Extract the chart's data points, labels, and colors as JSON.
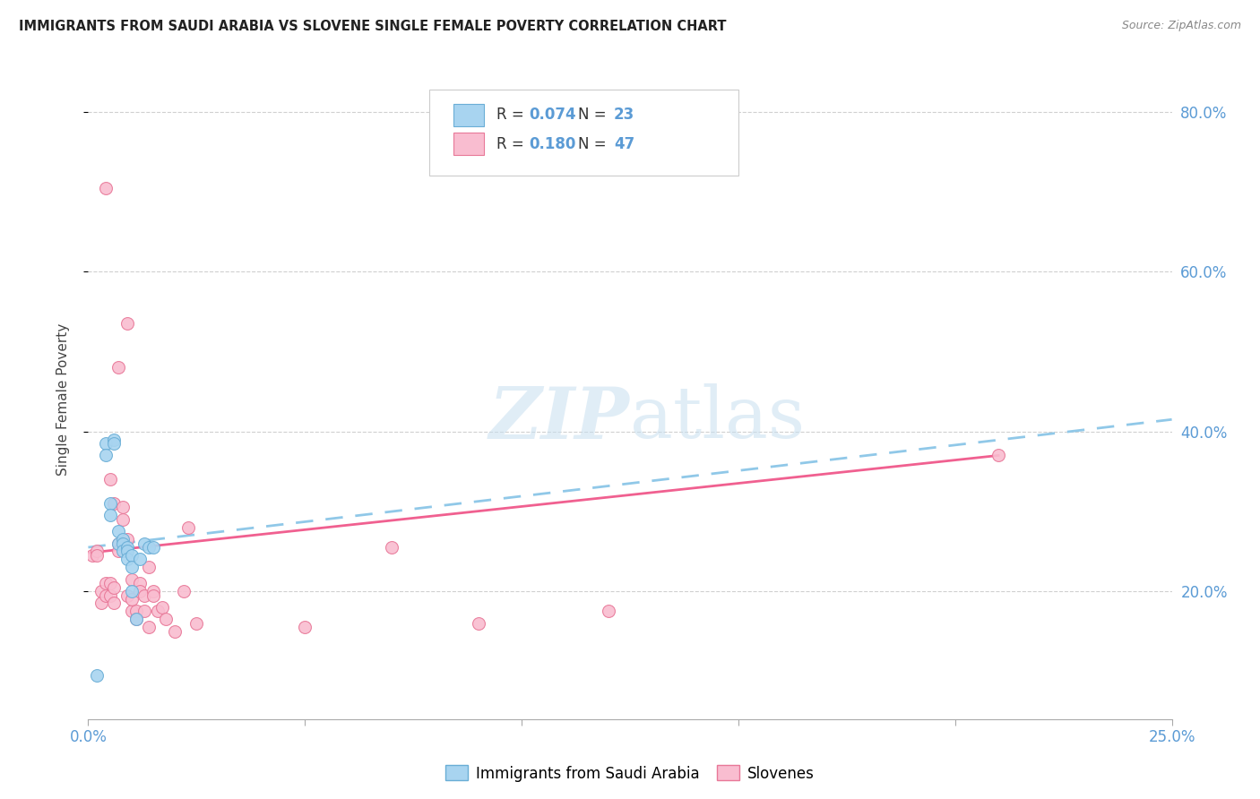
{
  "title": "IMMIGRANTS FROM SAUDI ARABIA VS SLOVENE SINGLE FEMALE POVERTY CORRELATION CHART",
  "source": "Source: ZipAtlas.com",
  "ylabel": "Single Female Poverty",
  "xlim": [
    0.0,
    0.25
  ],
  "ylim": [
    0.04,
    0.84
  ],
  "xticks": [
    0.0,
    0.05,
    0.1,
    0.15,
    0.2,
    0.25
  ],
  "yticks": [
    0.2,
    0.4,
    0.6,
    0.8
  ],
  "background_color": "#FFFFFF",
  "grid_color": "#D0D0D0",
  "blue_scatter_face": "#A8D4F0",
  "blue_scatter_edge": "#6AAED6",
  "pink_scatter_face": "#F9BDD0",
  "pink_scatter_edge": "#E87898",
  "blue_trend_color": "#90C8E8",
  "pink_trend_color": "#F06090",
  "right_axis_color": "#5B9BD5",
  "bottom_label_color": "#5B9BD5",
  "blue_points_x": [
    0.002,
    0.004,
    0.004,
    0.005,
    0.005,
    0.006,
    0.006,
    0.007,
    0.007,
    0.008,
    0.008,
    0.008,
    0.009,
    0.009,
    0.009,
    0.01,
    0.01,
    0.01,
    0.011,
    0.012,
    0.013,
    0.014,
    0.015
  ],
  "blue_points_y": [
    0.095,
    0.385,
    0.37,
    0.31,
    0.295,
    0.39,
    0.385,
    0.275,
    0.26,
    0.265,
    0.26,
    0.25,
    0.255,
    0.25,
    0.24,
    0.245,
    0.23,
    0.2,
    0.165,
    0.24,
    0.26,
    0.255,
    0.255
  ],
  "pink_points_x": [
    0.001,
    0.002,
    0.002,
    0.003,
    0.003,
    0.004,
    0.004,
    0.004,
    0.005,
    0.005,
    0.005,
    0.006,
    0.006,
    0.006,
    0.007,
    0.007,
    0.007,
    0.008,
    0.008,
    0.009,
    0.009,
    0.009,
    0.01,
    0.01,
    0.01,
    0.011,
    0.011,
    0.012,
    0.012,
    0.013,
    0.013,
    0.014,
    0.014,
    0.015,
    0.015,
    0.016,
    0.017,
    0.018,
    0.02,
    0.022,
    0.023,
    0.025,
    0.05,
    0.07,
    0.09,
    0.12,
    0.21
  ],
  "pink_points_y": [
    0.245,
    0.25,
    0.245,
    0.2,
    0.185,
    0.21,
    0.195,
    0.705,
    0.21,
    0.195,
    0.34,
    0.205,
    0.185,
    0.31,
    0.26,
    0.25,
    0.48,
    0.305,
    0.29,
    0.265,
    0.195,
    0.535,
    0.215,
    0.175,
    0.19,
    0.175,
    0.165,
    0.21,
    0.2,
    0.195,
    0.175,
    0.23,
    0.155,
    0.2,
    0.195,
    0.175,
    0.18,
    0.165,
    0.15,
    0.2,
    0.28,
    0.16,
    0.155,
    0.255,
    0.16,
    0.175,
    0.37
  ],
  "blue_trend_x0": 0.0,
  "blue_trend_x1": 0.25,
  "blue_trend_y0": 0.255,
  "blue_trend_y1": 0.415,
  "pink_trend_x0": 0.0,
  "pink_trend_x1": 0.21,
  "pink_trend_y0": 0.248,
  "pink_trend_y1": 0.37
}
